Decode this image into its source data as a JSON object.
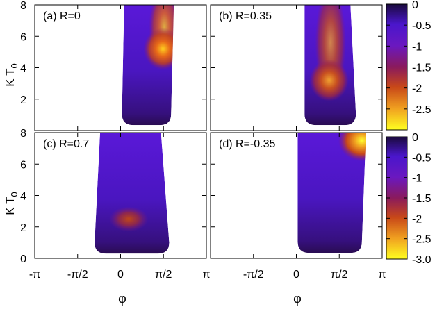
{
  "chart_data": [
    {
      "type": "heatmap",
      "panel_label": "(a) R=0",
      "x_range": [
        -3.1416,
        3.1416
      ],
      "y_range": [
        0,
        8
      ],
      "region": {
        "x_left_at_bottom": 0.05,
        "x_left_at_top": 0.13,
        "x_right_at_bottom": 1.85,
        "x_right_at_top": 1.95,
        "y_bottom": 0.35,
        "y_top": 8.0
      },
      "hotspot": {
        "x": 1.55,
        "y": 5.2,
        "min_value": -2.0,
        "ridge_to_y": 8.0
      }
    },
    {
      "type": "heatmap",
      "panel_label": "(b) R=0.35",
      "x_range": [
        -3.1416,
        3.1416
      ],
      "y_range": [
        0,
        8
      ],
      "region": {
        "x_left_at_bottom": 0.3,
        "x_left_at_top": 0.3,
        "x_right_at_bottom": 2.18,
        "x_right_at_top": 1.98,
        "y_bottom": 0.35,
        "y_top": 8.0
      },
      "hotspot": {
        "x": 1.2,
        "y": 3.2,
        "min_value": -1.8,
        "ridge_to_y": 8.0
      }
    },
    {
      "type": "heatmap",
      "panel_label": "(c) R=0.7",
      "x_range": [
        -3.1416,
        3.1416
      ],
      "y_range": [
        0,
        8
      ],
      "region": {
        "x_left_at_bottom": -0.95,
        "x_left_at_top": -0.75,
        "x_right_at_bottom": 1.78,
        "x_right_at_top": 1.48,
        "y_bottom": 0.3,
        "y_top": 8.0
      },
      "hotspot": {
        "x": 0.3,
        "y": 2.5,
        "min_value": -1.6,
        "ridge_to_y": 2.5
      }
    },
    {
      "type": "heatmap",
      "panel_label": "(d) R=-0.35",
      "x_range": [
        -3.1416,
        3.1416
      ],
      "y_range": [
        0,
        8
      ],
      "region": {
        "x_left_at_bottom": 0.05,
        "x_left_at_top": 0.05,
        "x_right_at_bottom": 2.4,
        "x_right_at_top": 2.55,
        "y_bottom": 0.35,
        "y_top": 8.0
      },
      "hotspot": {
        "x": 2.4,
        "y": 7.5,
        "min_value": -3.0,
        "ridge_to_y": 5.4
      }
    }
  ],
  "axes": {
    "ylabel_main": "K T",
    "ylabel_sub": "0",
    "xlabel": "φ",
    "y_ticks": [
      "0",
      "2",
      "4",
      "6",
      "8"
    ],
    "x_ticks_left": [
      "-π",
      "-π/2",
      "0",
      "π/2",
      "π"
    ],
    "x_ticks_right": [
      "-π/2",
      "0",
      "π/2",
      "π"
    ]
  },
  "colorbar": {
    "top_ticks": [
      "0",
      "-0.5",
      "-1",
      "-1.5",
      "-2",
      "-2.5"
    ],
    "bottom_ticks": [
      "0",
      "-0.5",
      "-1",
      "-1.5",
      "-2",
      "-2.5",
      "-3.0"
    ],
    "range": [
      -3.0,
      0
    ],
    "colors": [
      "#ffff20",
      "#f0a020",
      "#c84818",
      "#8a1a5c",
      "#6a18c0",
      "#4a16cc",
      "#1a0a3c"
    ]
  }
}
